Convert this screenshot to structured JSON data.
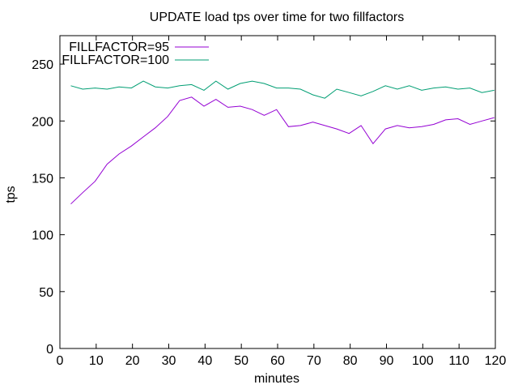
{
  "chart_data": {
    "type": "line",
    "title": "UPDATE load tps over time for two fillfactors",
    "xlabel": "minutes",
    "ylabel": "tps",
    "xlim": [
      0,
      120
    ],
    "ylim": [
      0,
      275
    ],
    "xticks": [
      0,
      10,
      20,
      30,
      40,
      50,
      60,
      70,
      80,
      90,
      100,
      110,
      120
    ],
    "yticks": [
      0,
      50,
      100,
      150,
      200,
      250
    ],
    "grid": false,
    "legend_position": "top-left",
    "x": [
      3,
      6.3,
      9.7,
      13,
      16.3,
      19.7,
      23,
      26.3,
      29.7,
      33,
      36.3,
      39.7,
      43,
      46.3,
      49.7,
      53,
      56.3,
      59.7,
      63,
      66.3,
      69.7,
      73,
      76.3,
      79.7,
      83,
      86.3,
      89.7,
      93,
      96.3,
      99.7,
      103,
      106.3,
      109.7,
      113,
      116.3,
      119.7
    ],
    "series": [
      {
        "name": "FILLFACTOR=95",
        "color": "#9400d3",
        "values": [
          127,
          137,
          147,
          162,
          171,
          178,
          186,
          194,
          204,
          218,
          221,
          213,
          219,
          212,
          213,
          210,
          205,
          210,
          195,
          196,
          199,
          196,
          193,
          189,
          196,
          180,
          193,
          196,
          194,
          195,
          197,
          201,
          202,
          197,
          200,
          203
        ]
      },
      {
        "name": "FILLFACTOR=100",
        "color": "#009e73",
        "values": [
          231,
          228,
          229,
          228,
          230,
          229,
          235,
          230,
          229,
          231,
          232,
          227,
          235,
          228,
          233,
          235,
          233,
          229,
          229,
          228,
          223,
          220,
          228,
          225,
          222,
          226,
          231,
          228,
          231,
          227,
          229,
          230,
          228,
          229,
          225,
          227
        ]
      }
    ]
  }
}
